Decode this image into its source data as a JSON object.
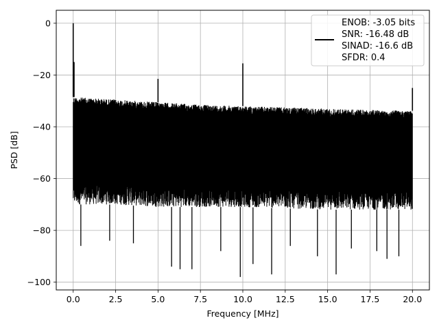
{
  "chart_data": {
    "type": "line",
    "title": "",
    "xlabel": "Frequency [MHz]",
    "ylabel": "PSD [dB]",
    "xlim": [
      -1.0,
      21.0
    ],
    "ylim": [
      -103.0,
      5.0
    ],
    "xticks": [
      0.0,
      2.5,
      5.0,
      7.5,
      10.0,
      12.5,
      15.0,
      17.5,
      20.0
    ],
    "xtick_labels": [
      "0.0",
      "2.5",
      "5.0",
      "7.5",
      "10.0",
      "12.5",
      "15.0",
      "17.5",
      "20.0"
    ],
    "yticks": [
      0,
      -20,
      -40,
      -60,
      -80,
      -100
    ],
    "ytick_labels": [
      "0",
      "−20",
      "−40",
      "−60",
      "−80",
      "−100"
    ],
    "grid": true,
    "legend_position": "top-right",
    "legend_entries": [
      "ENOB: -3.05 bits",
      "SNR: -16.48 dB",
      "SINAD: -16.6 dB",
      "SFDR: 0.4"
    ],
    "line_color": "#000000",
    "series": [
      {
        "name": "ENOB: -3.05 bits",
        "envelope": {
          "x": [
            0.0,
            2.5,
            5.0,
            7.5,
            10.0,
            12.5,
            15.0,
            17.5,
            20.0
          ],
          "upper": [
            -28.5,
            -29.5,
            -30.5,
            -31.5,
            -32.0,
            -32.5,
            -33.0,
            -33.5,
            -33.8
          ],
          "lower": [
            -70.0,
            -70.0,
            -71.0,
            -71.0,
            -71.0,
            -71.5,
            -72.0,
            -72.0,
            -72.0
          ]
        },
        "peaks": [
          {
            "x": 0.0,
            "y": 0.0
          },
          {
            "x": 0.05,
            "y": -15.0
          },
          {
            "x": 5.0,
            "y": -21.5
          },
          {
            "x": 10.0,
            "y": -15.5
          },
          {
            "x": 20.0,
            "y": -25.0
          }
        ],
        "dips": [
          {
            "x": 0.45,
            "y": -86.0
          },
          {
            "x": 2.15,
            "y": -84.0
          },
          {
            "x": 3.55,
            "y": -85.0
          },
          {
            "x": 5.8,
            "y": -94.0
          },
          {
            "x": 6.3,
            "y": -95.0
          },
          {
            "x": 7.0,
            "y": -95.0
          },
          {
            "x": 8.7,
            "y": -88.0
          },
          {
            "x": 9.85,
            "y": -98.0
          },
          {
            "x": 10.6,
            "y": -93.0
          },
          {
            "x": 11.7,
            "y": -97.0
          },
          {
            "x": 12.8,
            "y": -86.0
          },
          {
            "x": 14.4,
            "y": -90.0
          },
          {
            "x": 15.5,
            "y": -97.0
          },
          {
            "x": 16.4,
            "y": -87.0
          },
          {
            "x": 17.9,
            "y": -88.0
          },
          {
            "x": 18.5,
            "y": -91.0
          },
          {
            "x": 19.2,
            "y": -90.0
          }
        ]
      }
    ]
  }
}
